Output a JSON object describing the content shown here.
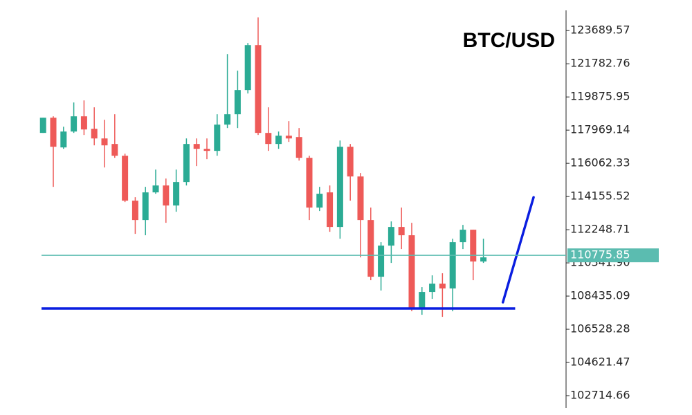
{
  "chart_data": {
    "type": "candlestick",
    "title": "BTC/USD",
    "x": [
      1,
      2,
      3,
      4,
      5,
      6,
      7,
      8,
      9,
      10,
      11,
      12,
      13,
      14,
      15,
      16,
      17,
      18,
      19,
      20,
      21,
      22,
      23,
      24,
      25,
      26,
      27,
      28,
      29,
      30,
      31,
      32,
      33,
      34,
      35,
      36,
      37,
      38,
      39,
      40,
      41,
      42,
      43,
      44
    ],
    "open": [
      117810,
      118684,
      116976,
      117889,
      118763,
      118048,
      117492,
      117174,
      116499,
      113917,
      112804,
      114393,
      114790,
      113639,
      114989,
      117174,
      116896,
      116777,
      118286,
      118882,
      120273,
      122855,
      117810,
      117174,
      117651,
      117571,
      116380,
      113519,
      114393,
      112407,
      117015,
      115307,
      112804,
      109547,
      111335,
      112407,
      111930,
      107759,
      108673,
      109150,
      108872,
      111533,
      112248,
      110421
    ],
    "high": [
      118684,
      118763,
      118167,
      119558,
      119677,
      119280,
      118565,
      118882,
      116618,
      114115,
      114711,
      115704,
      115188,
      115704,
      117492,
      117492,
      117492,
      118882,
      122338,
      121385,
      122974,
      124444,
      119280,
      117889,
      118485,
      118088,
      116499,
      114711,
      114790,
      117373,
      117174,
      115506,
      113519,
      111533,
      112725,
      113519,
      112646,
      108951,
      109626,
      109746,
      111732,
      112526,
      112248,
      111732
    ],
    "low": [
      117810,
      114711,
      116896,
      117810,
      117691,
      117095,
      115824,
      116380,
      113837,
      112010,
      111930,
      114314,
      112646,
      113281,
      114790,
      115903,
      116300,
      116499,
      118088,
      118088,
      120074,
      117691,
      116777,
      116896,
      117293,
      116221,
      112804,
      113321,
      112129,
      111732,
      113917,
      110659,
      109348,
      108752,
      110341,
      111136,
      107561,
      107362,
      108276,
      107243,
      107561,
      111136,
      109348,
      110341
    ],
    "close": [
      118684,
      117015,
      117889,
      118763,
      118008,
      117492,
      117095,
      116499,
      113917,
      112804,
      114393,
      114790,
      113639,
      114989,
      117174,
      116896,
      116777,
      118286,
      118882,
      120273,
      122855,
      117810,
      117174,
      117651,
      117492,
      116380,
      113519,
      114314,
      112407,
      117015,
      115307,
      112804,
      109547,
      111335,
      112407,
      111930,
      107759,
      108673,
      109150,
      108872,
      111533,
      112248,
      110421,
      110659
    ],
    "up_color": "#2bab94",
    "down_color": "#ee5a58",
    "xlim": [
      0.85,
      52.07
    ],
    "ylim": [
      102000,
      124850
    ],
    "yticks": [
      123689.57,
      121782.76,
      119875.95,
      117969.14,
      116062.33,
      114155.52,
      112248.71,
      {
        "value": 110341.9,
        "label": "110341.90"
      },
      108435.09,
      106528.28,
      104621.47,
      102714.66
    ],
    "price_line": {
      "value": 110775.85,
      "color": "#5bbcb0"
    },
    "support_line": {
      "x": [
        0.85,
        47.1
      ],
      "y": [
        107720,
        107720
      ],
      "color": "#0a1ee0"
    },
    "trend_line": {
      "x": [
        45.9,
        48.9
      ],
      "y": [
        108077,
        114115
      ],
      "color": "#0a1ee0"
    }
  }
}
